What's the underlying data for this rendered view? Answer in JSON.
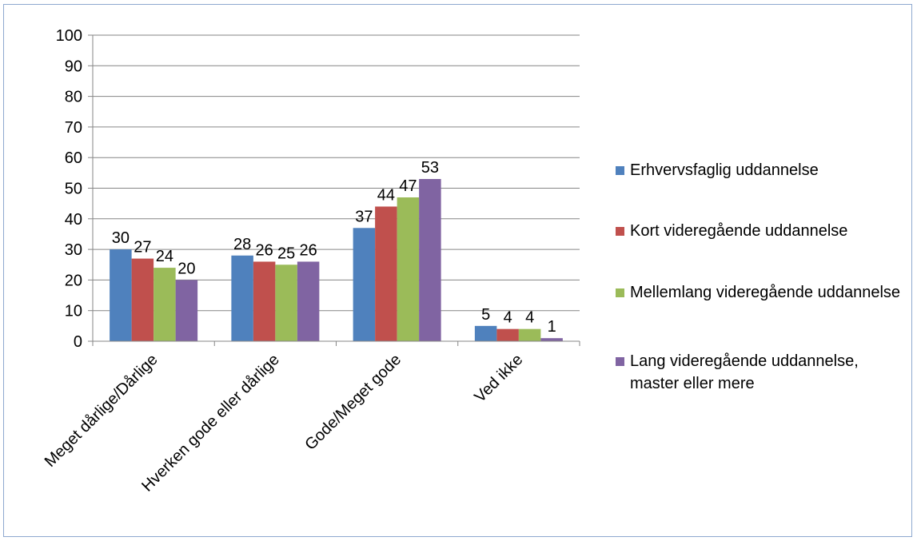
{
  "chart_data": {
    "type": "bar",
    "title": "",
    "xlabel": "",
    "ylabel": "",
    "ylim": [
      0,
      100
    ],
    "yticks": [
      0,
      10,
      20,
      30,
      40,
      50,
      60,
      70,
      80,
      90,
      100
    ],
    "grid": true,
    "legend_position": "right",
    "categories": [
      "Meget dårlige/Dårlige",
      "Hverken gode eller dårlige",
      "Gode/Meget gode",
      "Ved ikke"
    ],
    "series": [
      {
        "name": "Erhvervsfaglig uddannelse",
        "color": "#4f81bd",
        "values": [
          30,
          28,
          37,
          5
        ]
      },
      {
        "name": "Kort videregående uddannelse",
        "color": "#c0504d",
        "values": [
          27,
          26,
          44,
          4
        ]
      },
      {
        "name": "Mellemlang videregående uddannelse",
        "color": "#9bbb59",
        "values": [
          24,
          25,
          47,
          4
        ]
      },
      {
        "name": "Lang videregående uddannelse, master eller mere",
        "color": "#8064a2",
        "values": [
          20,
          26,
          53,
          1
        ]
      }
    ]
  }
}
